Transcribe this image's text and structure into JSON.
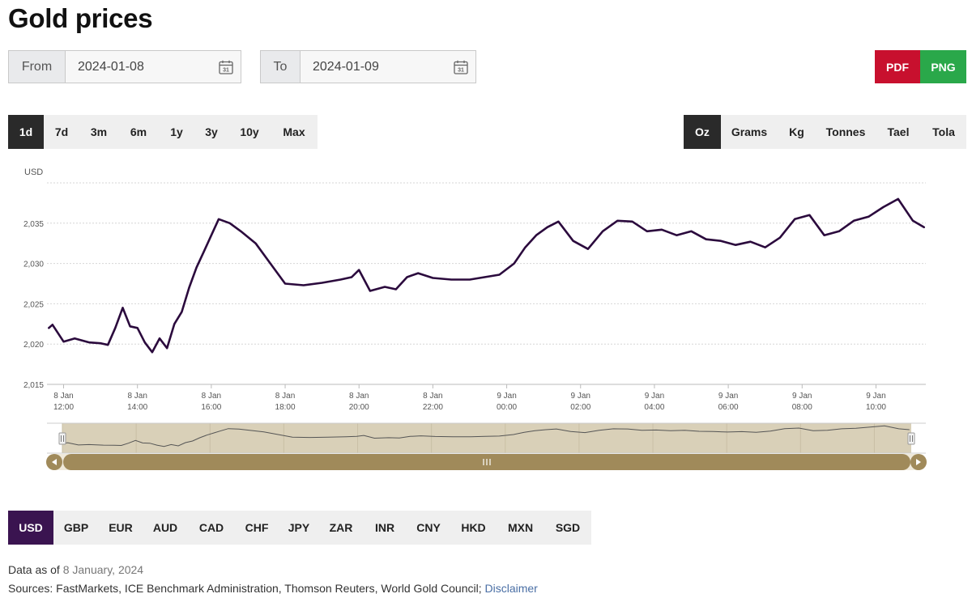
{
  "title": "Gold prices",
  "date_range": {
    "from_label": "From",
    "from_value": "2024-01-08",
    "to_label": "To",
    "to_value": "2024-01-09",
    "calendar_icon": "calendar-icon"
  },
  "export": {
    "pdf_label": "PDF",
    "png_label": "PNG",
    "pdf_color": "#c8102e",
    "png_color": "#2aa84a"
  },
  "periods": [
    "1d",
    "7d",
    "3m",
    "6m",
    "1y",
    "3y",
    "10y",
    "Max"
  ],
  "active_period": "1d",
  "units": [
    "Oz",
    "Grams",
    "Kg",
    "Tonnes",
    "Tael",
    "Tola"
  ],
  "active_unit": "Oz",
  "currencies": [
    "USD",
    "GBP",
    "EUR",
    "AUD",
    "CAD",
    "CHF",
    "JPY",
    "ZAR",
    "INR",
    "CNY",
    "HKD",
    "MXN",
    "SGD"
  ],
  "active_currency": "USD",
  "chart_data": {
    "type": "line",
    "ylabel": "USD",
    "y_ticks": [
      "2,015",
      "2,020",
      "2,025",
      "2,030",
      "2,035"
    ],
    "ylim": [
      2015,
      2040
    ],
    "x_ticks": [
      {
        "date": "8 Jan",
        "time": "12:00"
      },
      {
        "date": "8 Jan",
        "time": "14:00"
      },
      {
        "date": "8 Jan",
        "time": "16:00"
      },
      {
        "date": "8 Jan",
        "time": "18:00"
      },
      {
        "date": "8 Jan",
        "time": "20:00"
      },
      {
        "date": "8 Jan",
        "time": "22:00"
      },
      {
        "date": "9 Jan",
        "time": "00:00"
      },
      {
        "date": "9 Jan",
        "time": "02:00"
      },
      {
        "date": "9 Jan",
        "time": "04:00"
      },
      {
        "date": "9 Jan",
        "time": "06:00"
      },
      {
        "date": "9 Jan",
        "time": "08:00"
      },
      {
        "date": "9 Jan",
        "time": "10:00"
      }
    ],
    "x_unit": "hours",
    "xlim": [
      11.55,
      35.35
    ],
    "series": [
      {
        "line_color": "#2b0a3d",
        "x": [
          11.6,
          11.7,
          12.0,
          12.3,
          12.7,
          13.0,
          13.2,
          13.4,
          13.6,
          13.8,
          14.0,
          14.2,
          14.4,
          14.6,
          14.8,
          15.0,
          15.2,
          15.4,
          15.6,
          15.8,
          16.0,
          16.2,
          16.5,
          16.8,
          17.2,
          17.6,
          18.0,
          18.5,
          19.0,
          19.5,
          19.8,
          20.0,
          20.3,
          20.7,
          21.0,
          21.3,
          21.6,
          22.0,
          22.5,
          23.0,
          23.4,
          23.8,
          24.2,
          24.5,
          24.8,
          25.1,
          25.4,
          25.8,
          26.2,
          26.6,
          27.0,
          27.4,
          27.8,
          28.2,
          28.6,
          29.0,
          29.4,
          29.8,
          30.2,
          30.6,
          31.0,
          31.4,
          31.8,
          32.2,
          32.6,
          33.0,
          33.4,
          33.8,
          34.2,
          34.6,
          35.0,
          35.3
        ],
        "y": [
          2022.0,
          2022.4,
          2020.3,
          2020.7,
          2020.2,
          2020.1,
          2019.9,
          2022.0,
          2024.5,
          2022.2,
          2022.0,
          2020.2,
          2019.0,
          2020.7,
          2019.5,
          2022.5,
          2024.0,
          2027.0,
          2029.5,
          2031.5,
          2033.5,
          2035.5,
          2035.0,
          2034.0,
          2032.5,
          2030.0,
          2027.5,
          2027.3,
          2027.6,
          2028.0,
          2028.3,
          2029.2,
          2026.6,
          2027.1,
          2026.8,
          2028.3,
          2028.8,
          2028.2,
          2028.0,
          2028.0,
          2028.3,
          2028.6,
          2030.0,
          2032.0,
          2033.5,
          2034.5,
          2035.2,
          2032.8,
          2031.8,
          2034.0,
          2035.3,
          2035.2,
          2034.0,
          2034.2,
          2033.5,
          2034.0,
          2033.0,
          2032.8,
          2032.3,
          2032.7,
          2032.0,
          2033.2,
          2035.5,
          2036.0,
          2033.5,
          2034.0,
          2035.3,
          2035.8,
          2037.0,
          2038.0,
          2035.3,
          2034.5
        ]
      }
    ],
    "navigator": {
      "fill_color": "#d9d0b8",
      "bar_color": "#a08a5a",
      "handle_icon": "grip-icon"
    }
  },
  "footer": {
    "data_as_of_label": "Data as of",
    "data_as_of_value": "8 January, 2024",
    "sources_text": "Sources: FastMarkets, ICE Benchmark Administration, Thomson Reuters, World Gold Council;",
    "disclaimer_label": "Disclaimer"
  }
}
